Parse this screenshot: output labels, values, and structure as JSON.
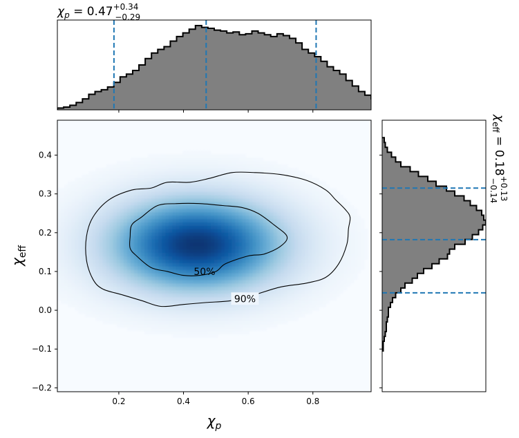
{
  "chart_data": [
    {
      "type": "heatmap",
      "panel": "joint",
      "xlabel": "χ",
      "xlabel_sub": "p",
      "ylabel": "χ",
      "ylabel_sub": "eff",
      "xlim": [
        0.01,
        0.98
      ],
      "ylim": [
        -0.21,
        0.49
      ],
      "xticks": [
        0.2,
        0.4,
        0.6,
        0.8
      ],
      "yticks": [
        -0.2,
        -0.1,
        0.0,
        0.1,
        0.2,
        0.3,
        0.4
      ],
      "xtick_labels": [
        "0.2",
        "0.4",
        "0.6",
        "0.8"
      ],
      "ytick_labels": [
        "−0.2",
        "−0.1",
        "0.0",
        "0.1",
        "0.2",
        "0.3",
        "0.4"
      ],
      "density_peak": {
        "x": 0.44,
        "y": 0.17
      },
      "density_spread": {
        "x": 0.19,
        "y": 0.085
      },
      "colormap": "Blues",
      "contours": [
        {
          "label": "50%",
          "label_at": {
            "x": 0.465,
            "y": 0.1
          },
          "points": [
            [
              0.24,
              0.22
            ],
            [
              0.27,
              0.24
            ],
            [
              0.32,
              0.27
            ],
            [
              0.38,
              0.275
            ],
            [
              0.45,
              0.275
            ],
            [
              0.52,
              0.27
            ],
            [
              0.58,
              0.265
            ],
            [
              0.63,
              0.25
            ],
            [
              0.68,
              0.22
            ],
            [
              0.72,
              0.19
            ],
            [
              0.7,
              0.165
            ],
            [
              0.65,
              0.145
            ],
            [
              0.6,
              0.14
            ],
            [
              0.53,
              0.12
            ],
            [
              0.5,
              0.1
            ],
            [
              0.45,
              0.09
            ],
            [
              0.4,
              0.09
            ],
            [
              0.35,
              0.1
            ],
            [
              0.3,
              0.11
            ],
            [
              0.255,
              0.14
            ],
            [
              0.235,
              0.16
            ],
            [
              0.235,
              0.19
            ]
          ]
        },
        {
          "label": "90%",
          "label_at": {
            "x": 0.59,
            "y": 0.03
          },
          "points": [
            [
              0.1,
              0.19
            ],
            [
              0.12,
              0.24
            ],
            [
              0.17,
              0.285
            ],
            [
              0.24,
              0.31
            ],
            [
              0.3,
              0.315
            ],
            [
              0.35,
              0.33
            ],
            [
              0.42,
              0.33
            ],
            [
              0.48,
              0.34
            ],
            [
              0.55,
              0.355
            ],
            [
              0.62,
              0.355
            ],
            [
              0.7,
              0.35
            ],
            [
              0.78,
              0.335
            ],
            [
              0.84,
              0.31
            ],
            [
              0.87,
              0.285
            ],
            [
              0.9,
              0.26
            ],
            [
              0.915,
              0.24
            ],
            [
              0.91,
              0.21
            ],
            [
              0.905,
              0.17
            ],
            [
              0.88,
              0.12
            ],
            [
              0.84,
              0.085
            ],
            [
              0.78,
              0.07
            ],
            [
              0.7,
              0.06
            ],
            [
              0.62,
              0.04
            ],
            [
              0.55,
              0.025
            ],
            [
              0.47,
              0.02
            ],
            [
              0.4,
              0.015
            ],
            [
              0.33,
              0.01
            ],
            [
              0.27,
              0.025
            ],
            [
              0.21,
              0.04
            ],
            [
              0.15,
              0.055
            ],
            [
              0.12,
              0.08
            ],
            [
              0.1,
              0.13
            ]
          ]
        }
      ]
    },
    {
      "type": "bar",
      "panel": "top-marginal",
      "title_prefix": "χ",
      "title_sub": "p",
      "title_value": " = 0.47",
      "title_upper": "+0.34",
      "title_lower": "−0.29",
      "x_edges_start": 0.01,
      "bin_width": 0.0194,
      "values": [
        2,
        3,
        5,
        8,
        12,
        17,
        20,
        22,
        25,
        30,
        36,
        39,
        43,
        49,
        56,
        62,
        66,
        69,
        75,
        80,
        84,
        88,
        92,
        90,
        89,
        87,
        86,
        84,
        85,
        82,
        83,
        86,
        84,
        82,
        80,
        83,
        81,
        78,
        73,
        66,
        62,
        58,
        53,
        47,
        43,
        39,
        32,
        26,
        20,
        16,
        12,
        10,
        7,
        4,
        2
      ],
      "ylim": [
        0,
        98
      ],
      "vlines": [
        0.185,
        0.47,
        0.81
      ],
      "fill_color": "#808080",
      "line_color": "#1f77b4"
    },
    {
      "type": "bar",
      "panel": "right-marginal",
      "orientation": "horizontal",
      "title_prefix": "χ",
      "title_sub": "eff",
      "title_value": " = 0.18",
      "title_upper": "+0.13",
      "title_lower": "−0.14",
      "y_edges_start": -0.105,
      "bin_width": 0.0125,
      "values": [
        1,
        1,
        2,
        3,
        4,
        4,
        5,
        6,
        6,
        8,
        10,
        13,
        18,
        22,
        29,
        34,
        40,
        48,
        55,
        63,
        65,
        70,
        80,
        87,
        93,
        97,
        100,
        98,
        96,
        91,
        85,
        79,
        70,
        62,
        52,
        44,
        35,
        27,
        18,
        13,
        9,
        5,
        3,
        2
      ],
      "xlim": [
        0,
        100
      ],
      "hlines": [
        0.045,
        0.182,
        0.315
      ],
      "fill_color": "#808080",
      "line_color": "#1f77b4"
    }
  ]
}
